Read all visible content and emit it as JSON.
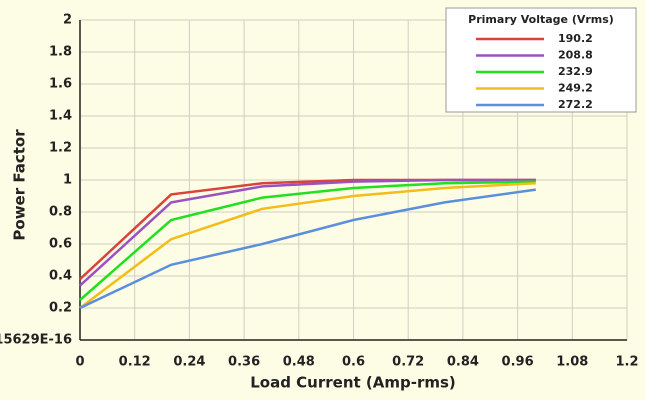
{
  "chart_data": {
    "type": "line",
    "x_label": "Load Current (Amp-rms)",
    "y_label": "Power Factor",
    "legend_title": "Primary Voltage (Vrms)",
    "legend": "top-right",
    "grid": true,
    "x": [
      0,
      0.2,
      0.4,
      0.6,
      0.8,
      1.0
    ],
    "series": [
      {
        "name": "190.2",
        "color": "#d9433b",
        "values": [
          0.38,
          0.91,
          0.98,
          1.0,
          1.0,
          1.0
        ]
      },
      {
        "name": "208.8",
        "color": "#9b52c0",
        "values": [
          0.34,
          0.86,
          0.96,
          0.99,
          1.0,
          1.0
        ]
      },
      {
        "name": "232.9",
        "color": "#22e01e",
        "values": [
          0.25,
          0.75,
          0.89,
          0.95,
          0.98,
          0.99
        ]
      },
      {
        "name": "249.2",
        "color": "#f2bd18",
        "values": [
          0.2,
          0.63,
          0.82,
          0.9,
          0.95,
          0.98
        ]
      },
      {
        "name": "272.2",
        "color": "#5b8fdc",
        "values": [
          0.2,
          0.47,
          0.6,
          0.75,
          0.86,
          0.94
        ]
      }
    ],
    "xlim": [
      0,
      1.2
    ],
    "xticks": [
      0,
      0.12,
      0.24,
      0.36,
      0.48,
      0.6,
      0.72,
      0.84,
      0.96,
      1.08,
      1.2
    ],
    "ylim": [
      0,
      2
    ],
    "yticks": [
      {
        "value": 0,
        "label": "15629E-16"
      },
      0.2,
      0.4,
      0.6,
      0.8,
      1,
      1.2,
      1.4,
      1.6,
      1.8,
      2
    ]
  }
}
